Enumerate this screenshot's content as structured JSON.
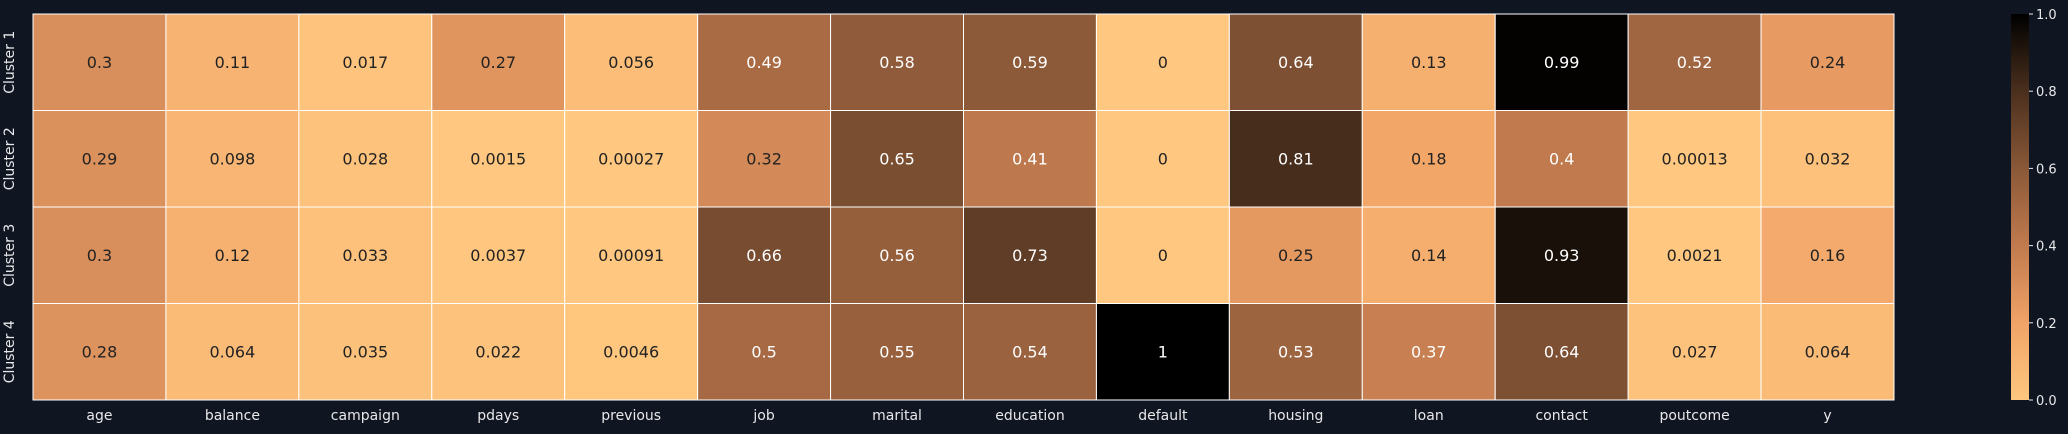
{
  "chart_data": {
    "type": "heatmap",
    "columns": [
      "age",
      "balance",
      "campaign",
      "pdays",
      "previous",
      "job",
      "marital",
      "education",
      "default",
      "housing",
      "loan",
      "contact",
      "poutcome",
      "y"
    ],
    "rows": [
      "Cluster 1",
      "Cluster 2",
      "Cluster 3",
      "Cluster 4"
    ],
    "values": [
      [
        0.3,
        0.11,
        0.017,
        0.27,
        0.056,
        0.49,
        0.58,
        0.59,
        0,
        0.64,
        0.13,
        0.99,
        0.52,
        0.24
      ],
      [
        0.29,
        0.098,
        0.028,
        0.0015,
        0.00027,
        0.32,
        0.65,
        0.41,
        0,
        0.81,
        0.18,
        0.4,
        0.00013,
        0.032
      ],
      [
        0.3,
        0.12,
        0.033,
        0.0037,
        0.00091,
        0.66,
        0.56,
        0.73,
        0,
        0.25,
        0.14,
        0.93,
        0.0021,
        0.16
      ],
      [
        0.28,
        0.064,
        0.035,
        0.022,
        0.0046,
        0.5,
        0.55,
        0.54,
        1,
        0.53,
        0.37,
        0.64,
        0.027,
        0.064
      ]
    ],
    "labels": [
      [
        "0.3",
        "0.11",
        "0.017",
        "0.27",
        "0.056",
        "0.49",
        "0.58",
        "0.59",
        "0",
        "0.64",
        "0.13",
        "0.99",
        "0.52",
        "0.24"
      ],
      [
        "0.29",
        "0.098",
        "0.028",
        "0.0015",
        "0.00027",
        "0.32",
        "0.65",
        "0.41",
        "0",
        "0.81",
        "0.18",
        "0.4",
        "0.00013",
        "0.032"
      ],
      [
        "0.3",
        "0.12",
        "0.033",
        "0.0037",
        "0.00091",
        "0.66",
        "0.56",
        "0.73",
        "0",
        "0.25",
        "0.14",
        "0.93",
        "0.0021",
        "0.16"
      ],
      [
        "0.28",
        "0.064",
        "0.035",
        "0.022",
        "0.0046",
        "0.5",
        "0.55",
        "0.54",
        "1",
        "0.53",
        "0.37",
        "0.64",
        "0.027",
        "0.064"
      ]
    ],
    "colorbar": {
      "range": [
        0,
        1
      ],
      "ticks": [
        "0.0",
        "0.2",
        "0.4",
        "0.6",
        "0.8",
        "1.0"
      ],
      "colormap": "copper_r"
    },
    "colors": {
      "background": "#0f1521",
      "low": "#ffc77f",
      "high": "#000000",
      "grid": "#ffffff",
      "text_light": "#ffffff",
      "text_dark": "#222222",
      "tick_text": "#e8e8ea"
    },
    "grid": true
  }
}
